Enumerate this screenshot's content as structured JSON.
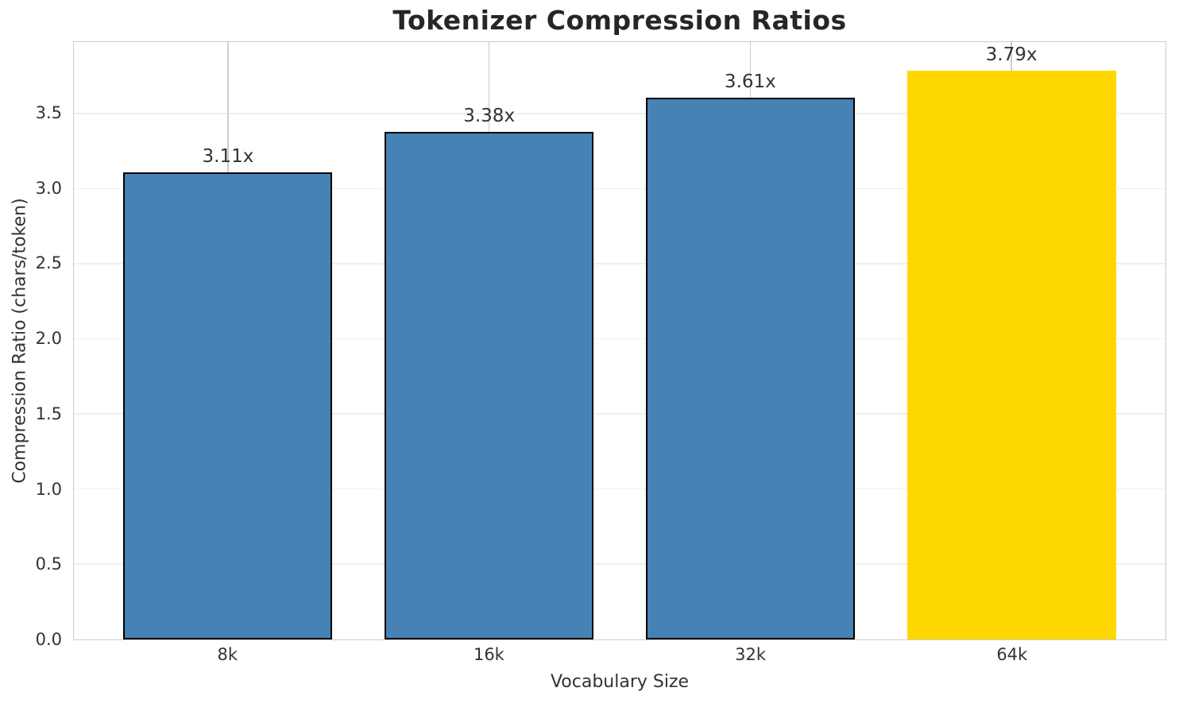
{
  "chart_data": {
    "type": "bar",
    "title": "Tokenizer Compression Ratios",
    "xlabel": "Vocabulary Size",
    "ylabel": "Compression Ratio (chars/token)",
    "categories": [
      "8k",
      "16k",
      "32k",
      "64k"
    ],
    "values": [
      3.11,
      3.38,
      3.61,
      3.79
    ],
    "bar_labels": [
      "3.11x",
      "3.38x",
      "3.61x",
      "3.79x"
    ],
    "bar_colors": [
      "#4682b4",
      "#4682b4",
      "#4682b4",
      "#ffd700"
    ],
    "bar_edge_colors": [
      "#000000",
      "#000000",
      "#000000",
      "#ffd700"
    ],
    "ylim": [
      0,
      3.98
    ],
    "yticks": [
      0,
      0.5,
      1,
      1.5,
      2,
      2.5,
      3,
      3.5
    ],
    "ytick_labels": [
      "0.0",
      "0.5",
      "1.0",
      "1.5",
      "2.0",
      "2.5",
      "3.0",
      "3.5"
    ],
    "grid": true,
    "legend": false,
    "colors": {
      "spine": "#cccccc",
      "grid_horizontal": "#efefef",
      "grid_vertical": "#cccccc",
      "text": "#333333",
      "title": "#262626",
      "background": "#ffffff"
    }
  }
}
